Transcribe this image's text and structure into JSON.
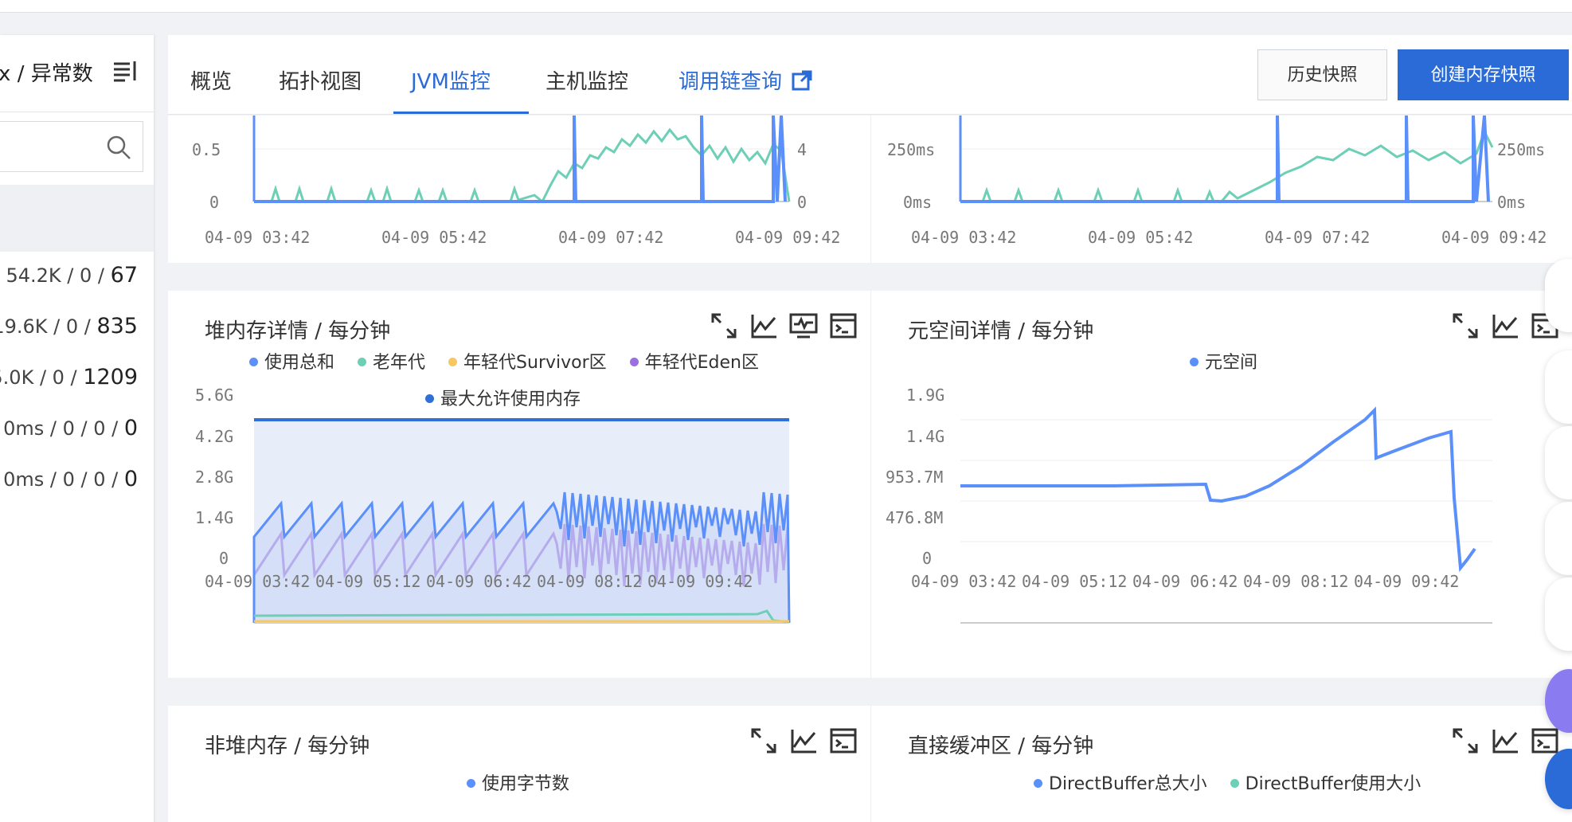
{
  "left_panel": {
    "header": "x / 异常数",
    "rows": [
      {
        "prefix": "/ 54.2K / 0 / ",
        "last": "67"
      },
      {
        "prefix": "19.6K / 0 / ",
        "last": "835"
      },
      {
        "prefix": "5.0K / 0 / ",
        "last": "1209"
      },
      {
        "prefix": "0ms / 0 / 0 / ",
        "last": "0"
      },
      {
        "prefix": "0ms / 0 / 0 / ",
        "last": "0"
      }
    ]
  },
  "tabs": {
    "items": [
      "概览",
      "拓扑视图",
      "JVM监控",
      "主机监控",
      "调用链查询"
    ],
    "active_index": 2
  },
  "buttons": {
    "history": "历史快照",
    "create": "创建内存快照"
  },
  "top_charts": {
    "left": {
      "y_left": [
        "0.5",
        "0"
      ],
      "y_right": [
        "4",
        "0"
      ],
      "x_ticks": [
        "04-09 03:42",
        "04-09 05:42",
        "04-09 07:42",
        "04-09 09:42"
      ]
    },
    "right": {
      "y_left": [
        "250ms",
        "0ms"
      ],
      "y_right": [
        "250ms",
        "0ms"
      ],
      "x_ticks": [
        "04-09 03:42",
        "04-09 05:42",
        "04-09 07:42",
        "04-09 09:42"
      ]
    }
  },
  "heap_card": {
    "title": "堆内存详情 / 每分钟",
    "legend": [
      "使用总和",
      "老年代",
      "年轻代Survivor区",
      "年轻代Eden区",
      "最大允许使用内存"
    ],
    "y_ticks": [
      "5.6G",
      "4.2G",
      "2.8G",
      "1.4G",
      "0"
    ],
    "x_ticks": [
      "04-09 03:42",
      "04-09 05:12",
      "04-09 06:42",
      "04-09 08:12",
      "04-09 09:42"
    ]
  },
  "meta_card": {
    "title": "元空间详情 / 每分钟",
    "legend": [
      "元空间"
    ],
    "y_ticks": [
      "1.9G",
      "1.4G",
      "953.7M",
      "476.8M",
      "0"
    ],
    "x_ticks": [
      "04-09 03:42",
      "04-09 05:12",
      "04-09 06:42",
      "04-09 08:12",
      "04-09 09:42"
    ]
  },
  "nonheap_card": {
    "title": "非堆内存 / 每分钟",
    "legend": [
      "使用字节数"
    ]
  },
  "direct_card": {
    "title": "直接缓冲区 / 每分钟",
    "legend": [
      "DirectBuffer总大小",
      "DirectBuffer使用大小"
    ]
  },
  "colors": {
    "primary": "#2a6bd8",
    "series_total": "#5b8ff9",
    "series_old": "#6dcfb6",
    "series_survivor": "#f6c85f",
    "series_eden": "#9b6fe0",
    "series_max": "#2f6fd6",
    "green": "#6dcfb6"
  },
  "chart_data": [
    {
      "type": "line",
      "title": "堆内存详情 / 每分钟",
      "x": [
        "04-09 03:42",
        "04-09 05:12",
        "04-09 06:42",
        "04-09 08:12",
        "04-09 09:42"
      ],
      "ylim": [
        0,
        5.6
      ],
      "ylabel": "G",
      "series": [
        {
          "name": "使用总和",
          "values": [
            1.0,
            1.3,
            1.3,
            1.3,
            1.2
          ]
        },
        {
          "name": "老年代",
          "values": [
            0.25,
            0.28,
            0.3,
            0.35,
            0.3
          ]
        },
        {
          "name": "年轻代Survivor区",
          "values": [
            0.02,
            0.02,
            0.02,
            0.02,
            0.02
          ]
        },
        {
          "name": "年轻代Eden区",
          "values": [
            0.5,
            0.8,
            0.9,
            0.9,
            0.9
          ]
        },
        {
          "name": "最大允许使用内存",
          "values": [
            5.4,
            5.4,
            5.4,
            5.4,
            5.4
          ]
        }
      ]
    },
    {
      "type": "line",
      "title": "元空间详情 / 每分钟",
      "x": [
        "04-09 03:42",
        "04-09 05:12",
        "04-09 06:42",
        "04-09 08:12",
        "04-09 09:42"
      ],
      "ylim": [
        0,
        1.9
      ],
      "series": [
        {
          "name": "元空间",
          "values": [
            1.1,
            1.1,
            1.1,
            1.6,
            0.5
          ]
        }
      ]
    }
  ]
}
